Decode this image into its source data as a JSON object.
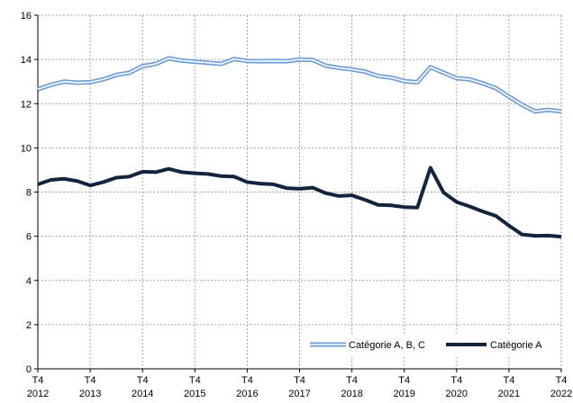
{
  "chart_data": {
    "type": "line",
    "title": "",
    "xlabel": "",
    "ylabel": "",
    "ylim": [
      0,
      16
    ],
    "yticks": [
      "0",
      "2",
      "4",
      "6",
      "8",
      "10",
      "12",
      "14",
      "16"
    ],
    "xtick_labels": [
      {
        "quarter": "T4",
        "year": "2012"
      },
      {
        "quarter": "T4",
        "year": "2013"
      },
      {
        "quarter": "T4",
        "year": "2014"
      },
      {
        "quarter": "T4",
        "year": "2015"
      },
      {
        "quarter": "T4",
        "year": "2016"
      },
      {
        "quarter": "T4",
        "year": "2017"
      },
      {
        "quarter": "T4",
        "year": "2018"
      },
      {
        "quarter": "T4",
        "year": "2019"
      },
      {
        "quarter": "T4",
        "year": "2020"
      },
      {
        "quarter": "T4",
        "year": "2021"
      },
      {
        "quarter": "T4",
        "year": "2022"
      }
    ],
    "grid": true,
    "legend_position": "bottom-right",
    "series": [
      {
        "name": "Catégorie A, B, C",
        "style": "double-line",
        "color": "#6f9fd8",
        "values": [
          12.65,
          12.85,
          13.0,
          12.95,
          12.97,
          13.1,
          13.3,
          13.4,
          13.7,
          13.8,
          14.05,
          13.95,
          13.9,
          13.85,
          13.8,
          14.02,
          13.93,
          13.92,
          13.93,
          13.92,
          14.0,
          13.98,
          13.72,
          13.62,
          13.55,
          13.45,
          13.25,
          13.18,
          13.02,
          12.97,
          13.65,
          13.4,
          13.15,
          13.1,
          12.92,
          12.7,
          12.32,
          11.95,
          11.65,
          11.72,
          11.65
        ]
      },
      {
        "name": "Catégorie A",
        "style": "thick-line",
        "color": "#13243f",
        "values": [
          8.35,
          8.55,
          8.6,
          8.5,
          8.3,
          8.45,
          8.65,
          8.7,
          8.92,
          8.9,
          9.05,
          8.9,
          8.85,
          8.82,
          8.72,
          8.7,
          8.45,
          8.38,
          8.35,
          8.18,
          8.15,
          8.2,
          7.95,
          7.82,
          7.85,
          7.65,
          7.42,
          7.4,
          7.32,
          7.3,
          9.1,
          7.98,
          7.55,
          7.35,
          7.12,
          6.92,
          6.48,
          6.08,
          6.02,
          6.03,
          5.98
        ]
      }
    ]
  }
}
